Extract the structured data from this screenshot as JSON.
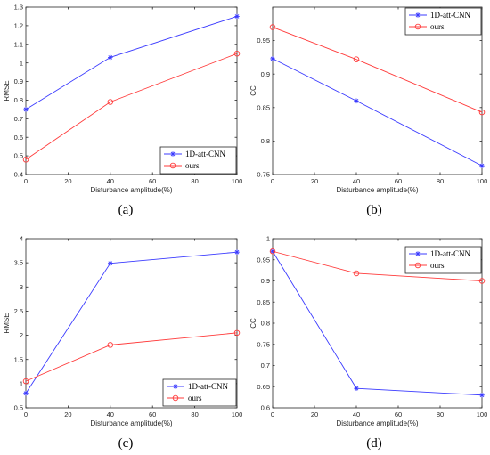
{
  "colors": {
    "blue": "#3b3bff",
    "red": "#ff3b3b",
    "axis": "#262626"
  },
  "chart_data": [
    {
      "type": "line",
      "panel_label": "(a)",
      "xlabel": "Disturbance amplitude(%)",
      "ylabel": "RMSE",
      "xlim": [
        0,
        100
      ],
      "ylim": [
        0.4,
        1.3
      ],
      "xticks": [
        0,
        20,
        40,
        60,
        80,
        100
      ],
      "yticks": [
        0.4,
        0.5,
        0.6,
        0.7,
        0.8,
        0.9,
        1,
        1.1,
        1.2,
        1.3
      ],
      "ytick_labels": [
        "0.4",
        "0.5",
        "0.6",
        "0.7",
        "0.8",
        "0.9",
        "1",
        "1.1",
        "1.2",
        "1.3"
      ],
      "legend_position": "bottom-right",
      "x": [
        0,
        40,
        100
      ],
      "series": [
        {
          "name": "1D-att-CNN",
          "values": [
            0.75,
            1.03,
            1.25
          ],
          "color": "#3b3bff",
          "marker": "star"
        },
        {
          "name": "ours",
          "values": [
            0.48,
            0.79,
            1.05
          ],
          "color": "#ff3b3b",
          "marker": "circle"
        }
      ]
    },
    {
      "type": "line",
      "panel_label": "(b)",
      "xlabel": "Disturbance amplitude(%)",
      "ylabel": "CC",
      "xlim": [
        0,
        100
      ],
      "ylim": [
        0.75,
        1.0
      ],
      "xticks": [
        0,
        20,
        40,
        60,
        80,
        100
      ],
      "yticks": [
        0.75,
        0.8,
        0.85,
        0.9,
        0.95
      ],
      "ytick_labels": [
        "0.75",
        "0.8",
        "0.85",
        "0.9",
        "0.95"
      ],
      "legend_position": "top-right",
      "x": [
        0,
        40,
        100
      ],
      "series": [
        {
          "name": "1D-att-CNN",
          "values": [
            0.923,
            0.86,
            0.763
          ],
          "color": "#3b3bff",
          "marker": "star"
        },
        {
          "name": "ours",
          "values": [
            0.97,
            0.922,
            0.843
          ],
          "color": "#ff3b3b",
          "marker": "circle"
        }
      ]
    },
    {
      "type": "line",
      "panel_label": "(c)",
      "xlabel": "Disturbance amplitude(%)",
      "ylabel": "RMSE",
      "xlim": [
        0,
        100
      ],
      "ylim": [
        0.5,
        4.0
      ],
      "xticks": [
        0,
        20,
        40,
        60,
        80,
        100
      ],
      "yticks": [
        0.5,
        1,
        1.5,
        2,
        2.5,
        3,
        3.5,
        4
      ],
      "ytick_labels": [
        "0.5",
        "1",
        "1.5",
        "2",
        "2.5",
        "3",
        "3.5",
        "4"
      ],
      "legend_position": "bottom-right",
      "x": [
        0,
        40,
        100
      ],
      "series": [
        {
          "name": "1D-att-CNN",
          "values": [
            0.8,
            3.49,
            3.72
          ],
          "color": "#3b3bff",
          "marker": "star"
        },
        {
          "name": "ours",
          "values": [
            1.05,
            1.8,
            2.05
          ],
          "color": "#ff3b3b",
          "marker": "circle"
        }
      ]
    },
    {
      "type": "line",
      "panel_label": "(d)",
      "xlabel": "Disturbance amplitude(%)",
      "ylabel": "CC",
      "xlim": [
        0,
        100
      ],
      "ylim": [
        0.6,
        1.0
      ],
      "xticks": [
        0,
        20,
        40,
        60,
        80,
        100
      ],
      "yticks": [
        0.6,
        0.65,
        0.7,
        0.75,
        0.8,
        0.85,
        0.9,
        0.95,
        1
      ],
      "ytick_labels": [
        "0.6",
        "0.65",
        "0.7",
        "0.75",
        "0.8",
        "0.85",
        "0.9",
        "0.95",
        "1"
      ],
      "legend_position": "top-right",
      "x": [
        0,
        40,
        100
      ],
      "series": [
        {
          "name": "1D-att-CNN",
          "values": [
            0.97,
            0.646,
            0.63
          ],
          "color": "#3b3bff",
          "marker": "star"
        },
        {
          "name": "ours",
          "values": [
            0.97,
            0.918,
            0.9
          ],
          "color": "#ff3b3b",
          "marker": "circle"
        }
      ]
    }
  ]
}
